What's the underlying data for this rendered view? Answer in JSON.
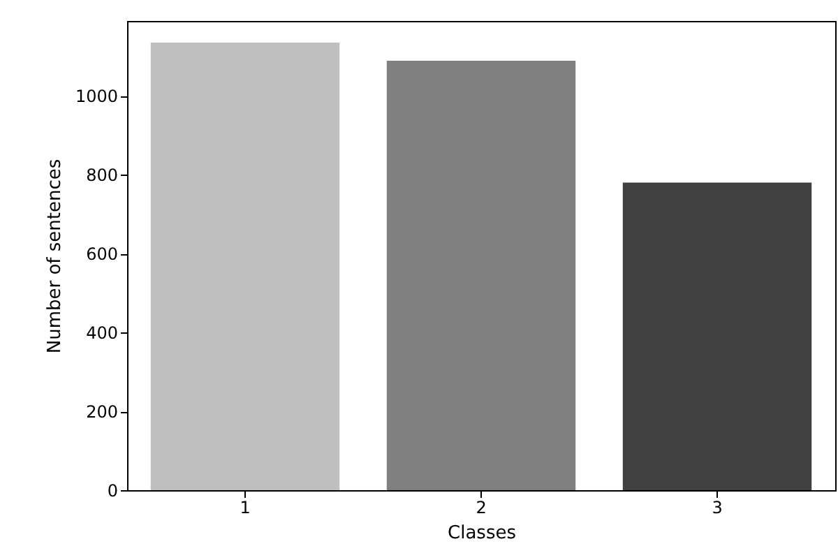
{
  "chart_data": {
    "type": "bar",
    "xlabel": "Classes",
    "ylabel": "Number of sentences",
    "categories": [
      "1",
      "2",
      "3"
    ],
    "values": [
      1135,
      1089,
      780
    ],
    "colors": [
      "#bfbfbf",
      "#808080",
      "#404040"
    ],
    "ylim": [
      0,
      1190
    ],
    "yticks": [
      0,
      200,
      400,
      600,
      800,
      1000
    ],
    "grid": false
  }
}
